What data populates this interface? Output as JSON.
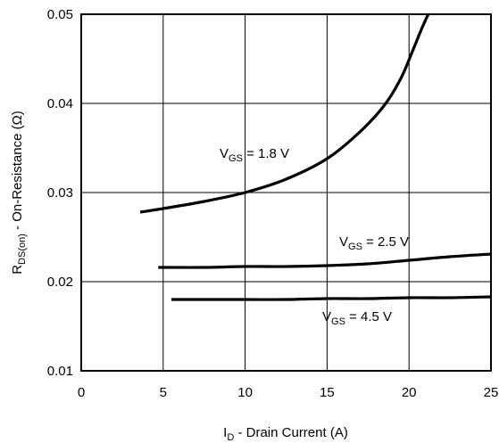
{
  "chart_data": {
    "type": "line",
    "title": "",
    "xlabel": {
      "main": "I",
      "sub": "D",
      "rest": " - Drain Current (A)"
    },
    "ylabel": {
      "main": "R",
      "sub": "DS(on)",
      "rest": " - On-Resistance (Ω)"
    },
    "xlim": [
      0,
      25
    ],
    "ylim": [
      0.01,
      0.05
    ],
    "x_ticks": [
      "0",
      "5",
      "10",
      "15",
      "20",
      "25"
    ],
    "y_ticks": [
      "0.01",
      "0.02",
      "0.03",
      "0.04",
      "0.05"
    ],
    "grid": true,
    "line_color": "#000000",
    "series": [
      {
        "name": "VGS = 1.8 V",
        "label_main": "V",
        "label_sub": "GS",
        "label_rest": " = 1.8 V",
        "x": [
          3.6,
          5,
          7.5,
          10,
          12.5,
          15,
          17,
          18.5,
          19.5,
          20.2,
          20.8,
          21.3
        ],
        "y": [
          0.0278,
          0.0282,
          0.029,
          0.03,
          0.0315,
          0.0338,
          0.0368,
          0.0398,
          0.0428,
          0.0458,
          0.0485,
          0.0505
        ]
      },
      {
        "name": "VGS = 2.5 V",
        "label_main": "V",
        "label_sub": "GS",
        "label_rest": " = 2.5 V",
        "x": [
          4.7,
          7.5,
          10,
          12.5,
          15,
          17.5,
          20,
          22.5,
          25
        ],
        "y": [
          0.0216,
          0.0216,
          0.0217,
          0.0217,
          0.0218,
          0.022,
          0.0224,
          0.0228,
          0.0231
        ]
      },
      {
        "name": "VGS = 4.5 V",
        "label_main": "V",
        "label_sub": "GS",
        "label_rest": " = 4.5 V",
        "x": [
          5.5,
          7.5,
          10,
          12.5,
          15,
          17.5,
          20,
          22.5,
          25
        ],
        "y": [
          0.018,
          0.018,
          0.018,
          0.018,
          0.0181,
          0.0181,
          0.0182,
          0.0182,
          0.0183
        ]
      }
    ]
  }
}
